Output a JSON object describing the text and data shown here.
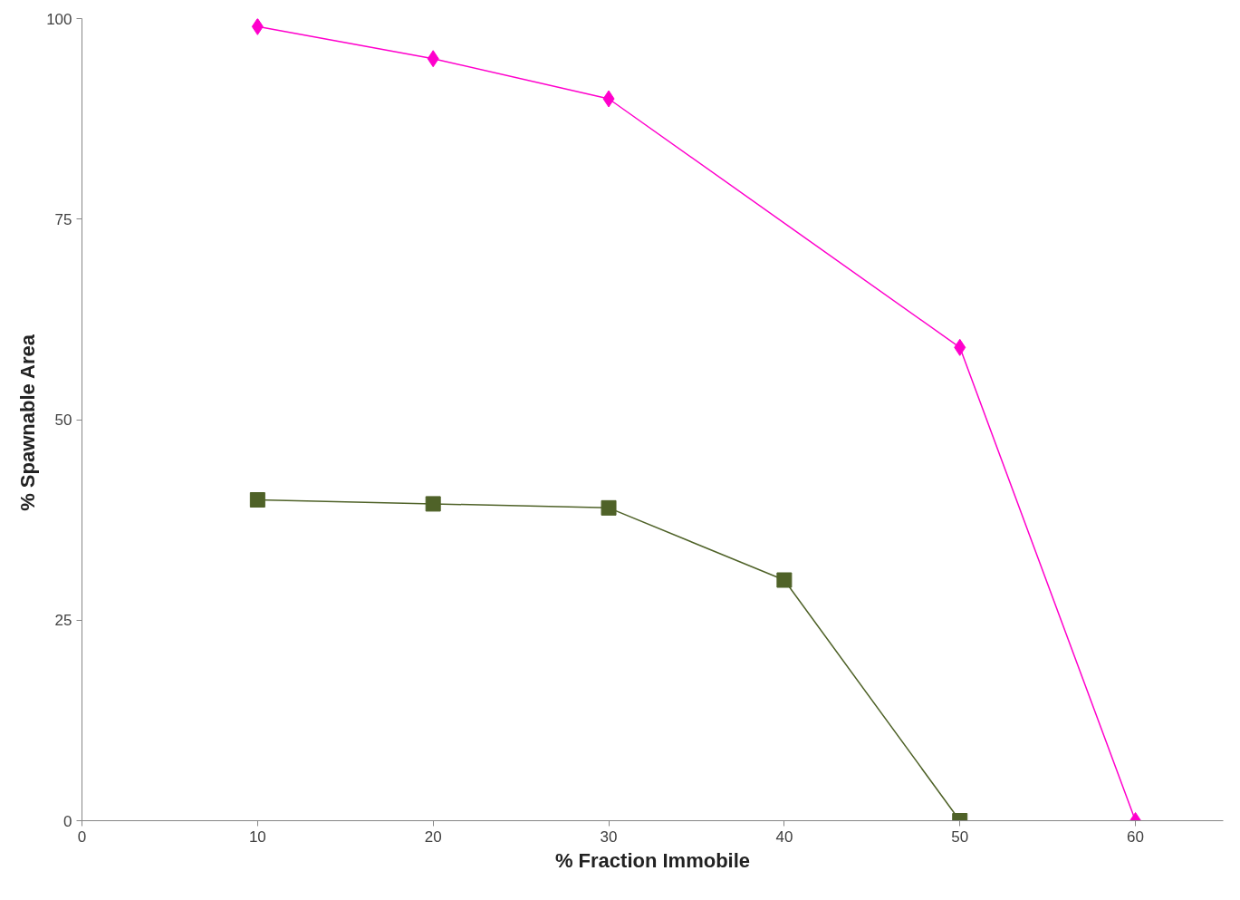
{
  "chart_data": {
    "type": "line",
    "xlabel": "% Fraction Immobile",
    "ylabel": "% Spawnable  Area",
    "xlim": [
      0,
      65
    ],
    "ylim": [
      0,
      100
    ],
    "xticks": [
      0,
      10,
      20,
      30,
      40,
      50,
      60
    ],
    "yticks": [
      0,
      25,
      50,
      75,
      100
    ],
    "grid": false,
    "line_style": "solid",
    "series": [
      {
        "color": "#ff00cc",
        "marker": "diamond",
        "x": [
          10,
          20,
          30,
          50,
          60
        ],
        "values": [
          99,
          95,
          90,
          59,
          0
        ]
      },
      {
        "color": "#4f6228",
        "marker": "square",
        "x": [
          10,
          20,
          30,
          40,
          50
        ],
        "values": [
          40,
          39.5,
          39,
          30,
          0
        ]
      }
    ]
  }
}
